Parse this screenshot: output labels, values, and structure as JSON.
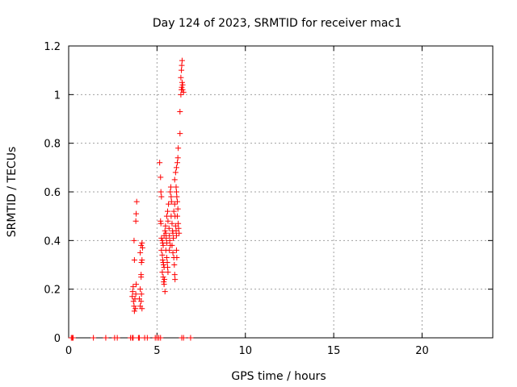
{
  "chart_data": {
    "type": "scatter",
    "title": "Day 124 of 2023, SRMTID for receiver mac1",
    "xlabel": "GPS time / hours",
    "ylabel": "SRMTID / TECUs",
    "xlim": [
      0,
      24
    ],
    "ylim": [
      0,
      1.2
    ],
    "xticks": [
      0,
      5,
      10,
      15,
      20
    ],
    "yticks": [
      0,
      0.2,
      0.4,
      0.6,
      0.8,
      1,
      1.2
    ],
    "xtick_labels": [
      "0",
      "5",
      "10",
      "15",
      "20"
    ],
    "ytick_labels": [
      "0",
      "0.2",
      "0.4",
      "0.6",
      "0.8",
      "1",
      "1.2"
    ],
    "grid": true,
    "marker": "+",
    "color": "#ff0000",
    "series": [
      {
        "points": [
          [
            0.15,
            0
          ],
          [
            0.2,
            0
          ],
          [
            0.25,
            0
          ],
          [
            1.4,
            0
          ],
          [
            2.1,
            0
          ],
          [
            2.6,
            0
          ],
          [
            2.75,
            0
          ],
          [
            3.5,
            0
          ],
          [
            3.6,
            0
          ],
          [
            3.65,
            0
          ],
          [
            3.95,
            0
          ],
          [
            4.0,
            0
          ],
          [
            4.3,
            0
          ],
          [
            4.45,
            0
          ],
          [
            4.9,
            0
          ],
          [
            5.0,
            0
          ],
          [
            5.1,
            0
          ],
          [
            5.2,
            0
          ],
          [
            6.4,
            0
          ],
          [
            6.5,
            0
          ],
          [
            6.9,
            0
          ],
          [
            3.6,
            0.17
          ],
          [
            3.62,
            0.19
          ],
          [
            3.65,
            0.21
          ],
          [
            3.67,
            0.15
          ],
          [
            3.7,
            0.13
          ],
          [
            3.72,
            0.11
          ],
          [
            3.75,
            0.16
          ],
          [
            3.78,
            0.12
          ],
          [
            3.8,
            0.18
          ],
          [
            3.82,
            0.22
          ],
          [
            3.7,
            0.4
          ],
          [
            3.72,
            0.32
          ],
          [
            3.8,
            0.48
          ],
          [
            3.82,
            0.51
          ],
          [
            3.85,
            0.56
          ],
          [
            4.0,
            0.16
          ],
          [
            4.05,
            0.13
          ],
          [
            4.1,
            0.15
          ],
          [
            4.12,
            0.18
          ],
          [
            4.15,
            0.12
          ],
          [
            4.05,
            0.2
          ],
          [
            4.1,
            0.26
          ],
          [
            4.12,
            0.31
          ],
          [
            4.15,
            0.32
          ],
          [
            4.05,
            0.35
          ],
          [
            4.1,
            0.38
          ],
          [
            4.15,
            0.39
          ],
          [
            4.18,
            0.37
          ],
          [
            4.1,
            0.25
          ],
          [
            5.15,
            0.72
          ],
          [
            5.2,
            0.66
          ],
          [
            5.22,
            0.6
          ],
          [
            5.25,
            0.58
          ],
          [
            5.2,
            0.48
          ],
          [
            5.22,
            0.47
          ],
          [
            5.25,
            0.41
          ],
          [
            5.3,
            0.4
          ],
          [
            5.32,
            0.39
          ],
          [
            5.35,
            0.38
          ],
          [
            5.25,
            0.36
          ],
          [
            5.3,
            0.34
          ],
          [
            5.32,
            0.32
          ],
          [
            5.35,
            0.31
          ],
          [
            5.37,
            0.3
          ],
          [
            5.4,
            0.29
          ],
          [
            5.3,
            0.27
          ],
          [
            5.35,
            0.25
          ],
          [
            5.38,
            0.23
          ],
          [
            5.4,
            0.22
          ],
          [
            5.42,
            0.24
          ],
          [
            5.45,
            0.19
          ],
          [
            5.4,
            0.42
          ],
          [
            5.45,
            0.44
          ],
          [
            5.48,
            0.46
          ],
          [
            5.5,
            0.43
          ],
          [
            5.52,
            0.41
          ],
          [
            5.55,
            0.39
          ],
          [
            5.5,
            0.36
          ],
          [
            5.55,
            0.33
          ],
          [
            5.58,
            0.31
          ],
          [
            5.6,
            0.29
          ],
          [
            5.62,
            0.27
          ],
          [
            5.55,
            0.5
          ],
          [
            5.6,
            0.52
          ],
          [
            5.65,
            0.55
          ],
          [
            5.62,
            0.48
          ],
          [
            5.68,
            0.45
          ],
          [
            5.7,
            0.42
          ],
          [
            5.72,
            0.4
          ],
          [
            5.75,
            0.38
          ],
          [
            5.7,
            0.36
          ],
          [
            5.75,
            0.6
          ],
          [
            5.78,
            0.62
          ],
          [
            5.8,
            0.58
          ],
          [
            5.82,
            0.56
          ],
          [
            5.8,
            0.5
          ],
          [
            5.85,
            0.47
          ],
          [
            5.88,
            0.44
          ],
          [
            5.9,
            0.43
          ],
          [
            5.92,
            0.41
          ],
          [
            5.85,
            0.38
          ],
          [
            5.9,
            0.35
          ],
          [
            5.95,
            0.33
          ],
          [
            5.98,
            0.3
          ],
          [
            6.0,
            0.26
          ],
          [
            6.02,
            0.24
          ],
          [
            5.95,
            0.52
          ],
          [
            6.0,
            0.55
          ],
          [
            6.02,
            0.5
          ],
          [
            6.05,
            0.46
          ],
          [
            6.08,
            0.44
          ],
          [
            6.1,
            0.42
          ],
          [
            6.0,
            0.65
          ],
          [
            6.05,
            0.68
          ],
          [
            6.08,
            0.62
          ],
          [
            6.1,
            0.6
          ],
          [
            6.12,
            0.58
          ],
          [
            6.15,
            0.56
          ],
          [
            6.18,
            0.53
          ],
          [
            6.1,
            0.7
          ],
          [
            6.15,
            0.72
          ],
          [
            6.18,
            0.74
          ],
          [
            6.2,
            0.78
          ],
          [
            6.15,
            0.5
          ],
          [
            6.2,
            0.47
          ],
          [
            6.22,
            0.45
          ],
          [
            6.25,
            0.43
          ],
          [
            6.1,
            0.36
          ],
          [
            6.12,
            0.33
          ],
          [
            6.3,
            0.93
          ],
          [
            6.3,
            0.84
          ],
          [
            6.35,
            1.0
          ],
          [
            6.38,
            1.02
          ],
          [
            6.4,
            1.03
          ],
          [
            6.42,
            1.05
          ],
          [
            6.45,
            1.04
          ],
          [
            6.35,
            1.07
          ],
          [
            6.38,
            1.1
          ],
          [
            6.4,
            1.12
          ],
          [
            6.42,
            1.14
          ],
          [
            6.45,
            1.02
          ],
          [
            6.5,
            1.01
          ]
        ]
      }
    ]
  }
}
